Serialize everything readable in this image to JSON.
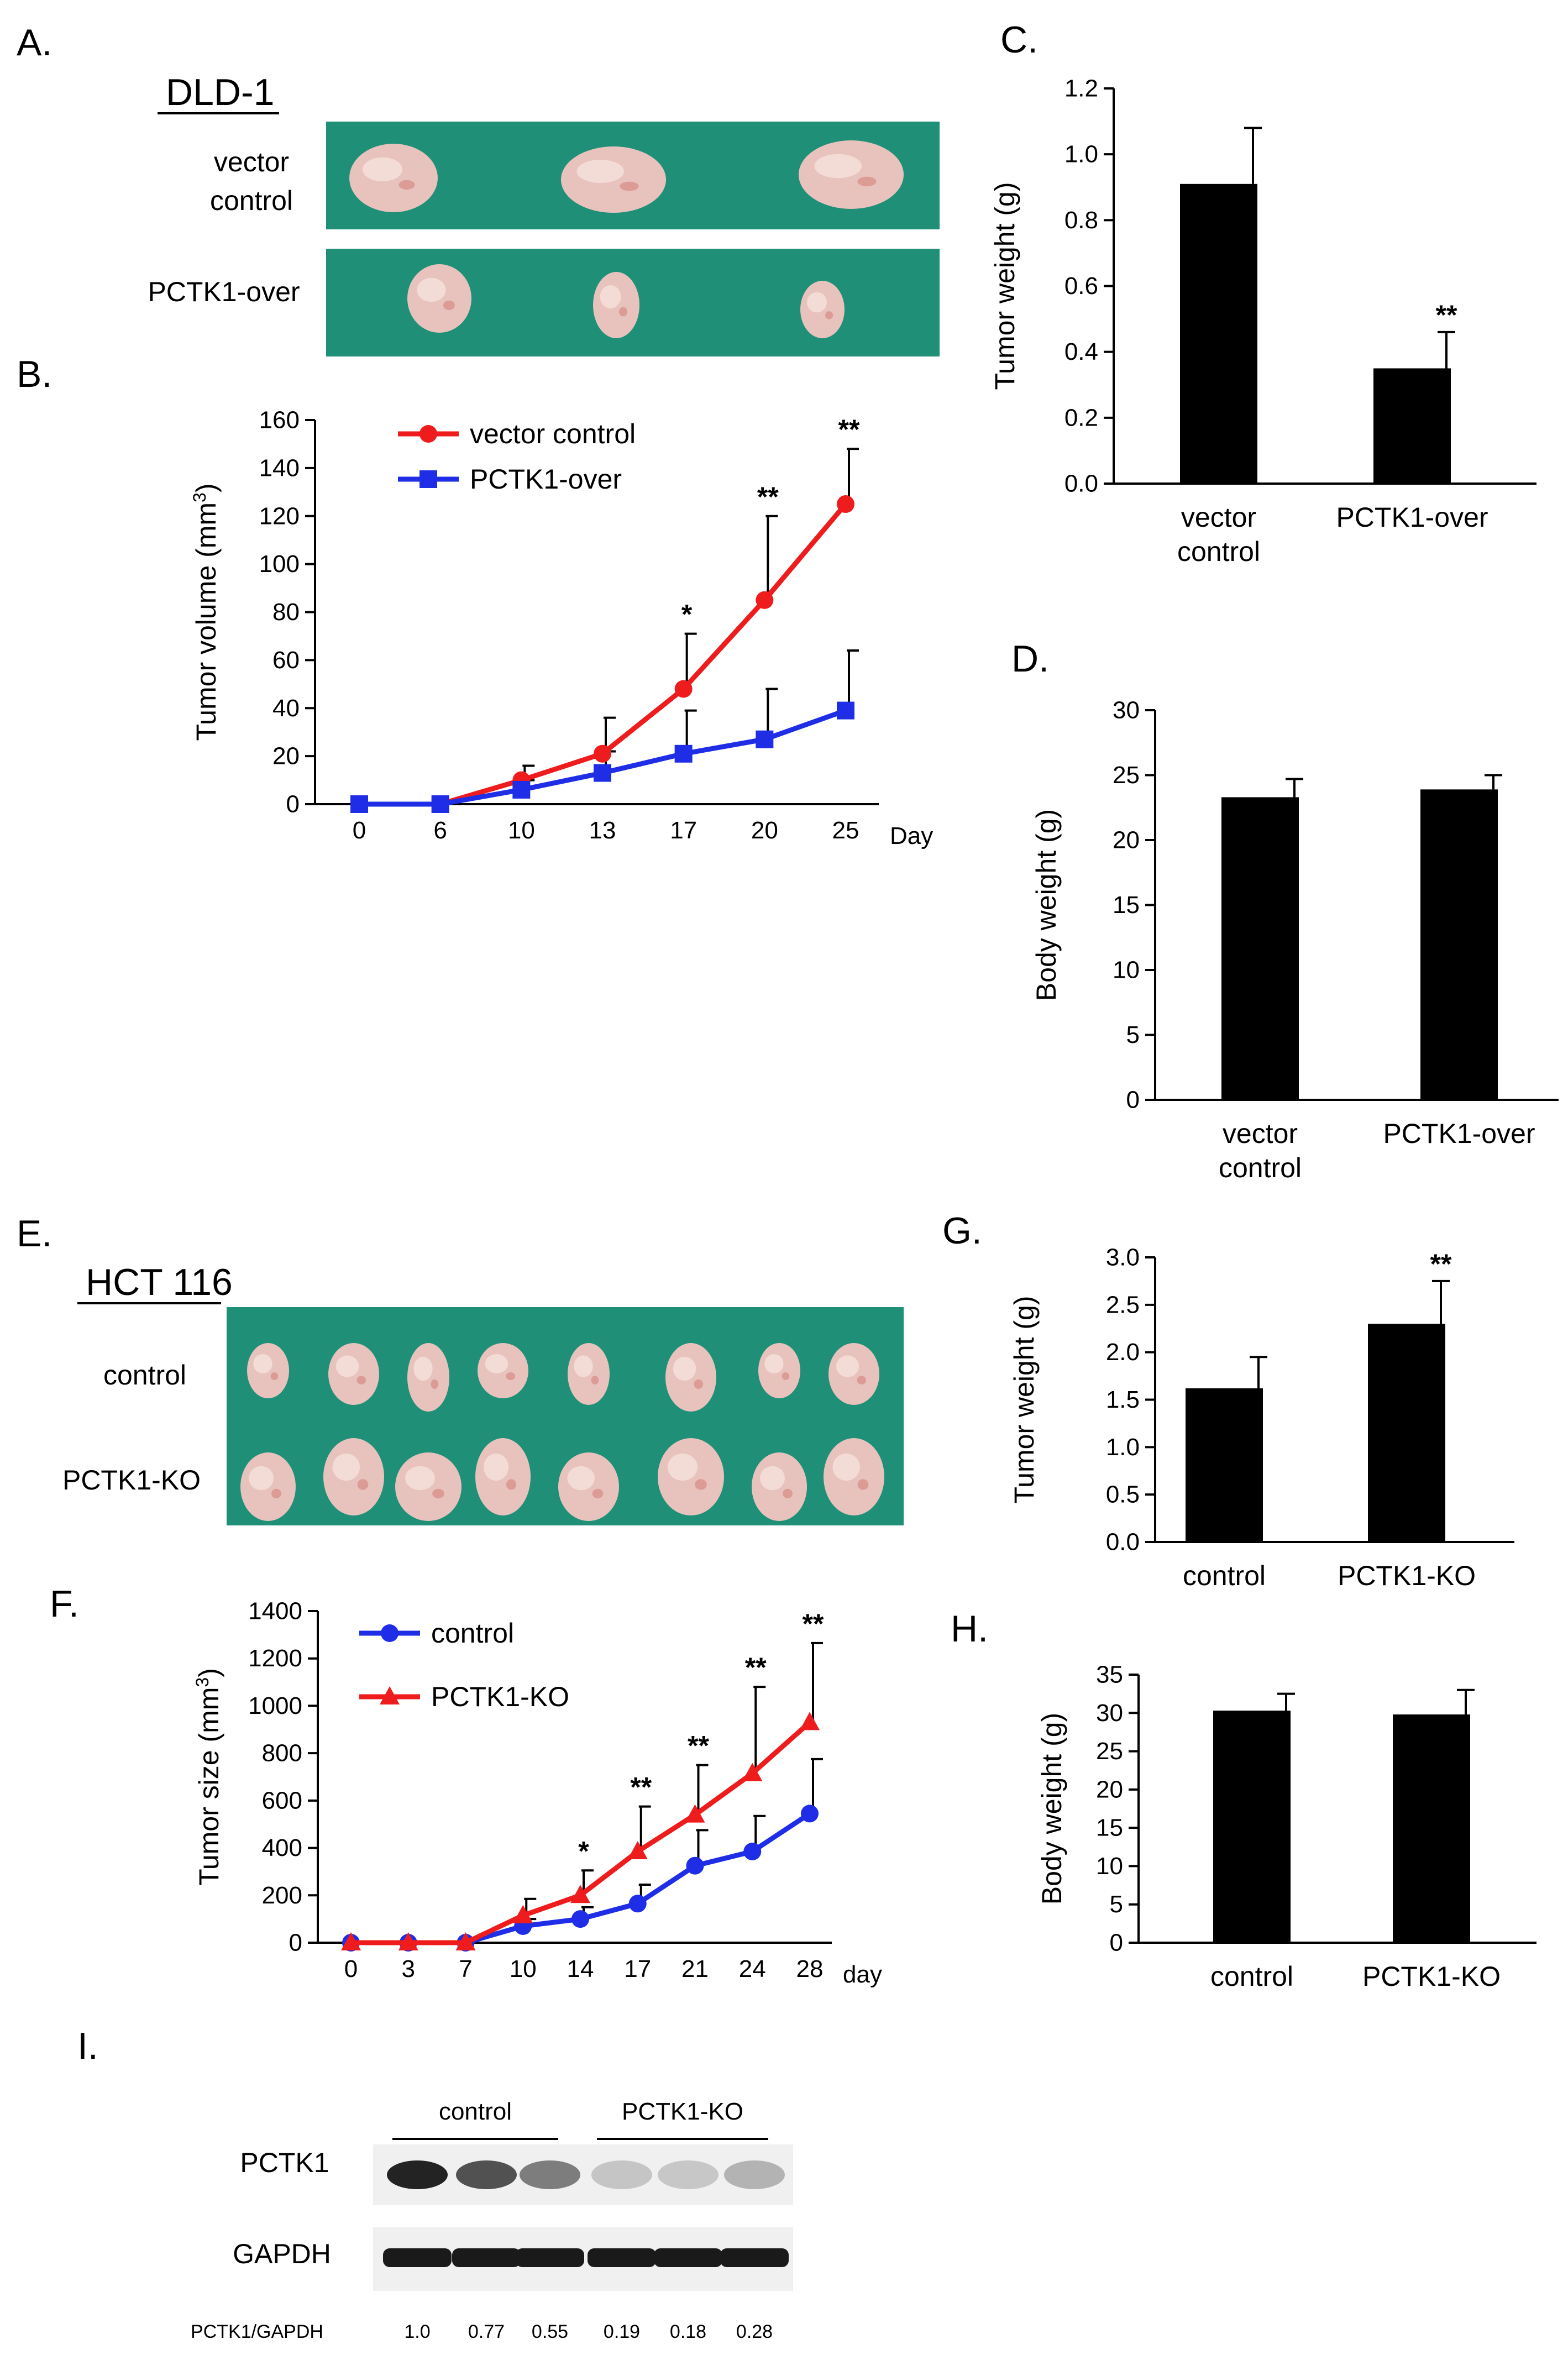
{
  "panels": {
    "A": {
      "label": "A.",
      "cell_line": "DLD-1",
      "rows": [
        "vector\ncontrol",
        "PCTK1-over"
      ],
      "photo_counts": [
        3,
        3
      ]
    },
    "E": {
      "label": "E.",
      "cell_line": "HCT 116",
      "rows": [
        "control",
        "PCTK1-KO"
      ],
      "photo_counts": [
        8,
        8
      ]
    },
    "I": {
      "label": "I.",
      "groups": [
        "control",
        "PCTK1-KO"
      ],
      "bands": [
        "PCTK1",
        "GAPDH"
      ],
      "ratio_label": "PCTK1/GAPDH",
      "ratios": [
        "1.0",
        "0.77",
        "0.55",
        "0.19",
        "0.18",
        "0.28"
      ],
      "pctk1_intensity": [
        1.0,
        0.77,
        0.55,
        0.19,
        0.18,
        0.28
      ]
    }
  },
  "colors": {
    "tissue_bg": "#1f8f78",
    "tumor": "#e8c3bd",
    "red": "#ee1c1c",
    "blue": "#1f2ee6",
    "bar": "#000000"
  },
  "chart_data": [
    {
      "id": "B",
      "panel_label": "B.",
      "type": "line",
      "x": [
        "0",
        "6",
        "10",
        "13",
        "17",
        "20",
        "25"
      ],
      "x_unit": "Day",
      "ylabel": "Tumor volume (mm³)",
      "ylim": [
        0,
        160
      ],
      "yticks": [
        "0",
        "20",
        "40",
        "60",
        "80",
        "100",
        "120",
        "140",
        "160"
      ],
      "legend": "top-left",
      "series": [
        {
          "name": "vector control",
          "color": "#ee1c1c",
          "marker": "circle",
          "values": [
            0,
            0,
            10,
            21,
            48,
            85,
            125
          ],
          "errors": [
            0,
            0,
            6,
            15,
            23,
            35,
            23
          ]
        },
        {
          "name": "PCTK1-over",
          "color": "#1f2ee6",
          "marker": "square",
          "values": [
            0,
            0,
            6,
            13,
            21,
            27,
            39
          ],
          "errors": [
            0,
            0,
            4,
            9,
            18,
            21,
            25
          ]
        }
      ],
      "annotations": [
        "",
        "",
        "",
        "",
        "*",
        "**",
        "**"
      ]
    },
    {
      "id": "C",
      "panel_label": "C.",
      "type": "bar",
      "categories": [
        "vector\ncontrol",
        "PCTK1-over"
      ],
      "values": [
        0.91,
        0.35
      ],
      "errors": [
        0.17,
        0.11
      ],
      "ylabel": "Tumor weight (g)",
      "ylim": [
        0,
        1.2
      ],
      "yticks": [
        "0.0",
        "0.2",
        "0.4",
        "0.6",
        "0.8",
        "1.0",
        "1.2"
      ],
      "annotations": [
        "",
        "**"
      ]
    },
    {
      "id": "D",
      "panel_label": "D.",
      "type": "bar",
      "categories": [
        "vector\ncontrol",
        "PCTK1-over"
      ],
      "values": [
        23.3,
        23.9
      ],
      "errors": [
        1.4,
        1.1
      ],
      "ylabel": "Body weight (g)",
      "ylim": [
        0,
        30
      ],
      "yticks": [
        "0",
        "5",
        "10",
        "15",
        "20",
        "25",
        "30"
      ],
      "annotations": [
        "",
        ""
      ]
    },
    {
      "id": "F",
      "panel_label": "F.",
      "type": "line",
      "x": [
        "0",
        "3",
        "7",
        "10",
        "14",
        "17",
        "21",
        "24",
        "28"
      ],
      "x_unit": "day",
      "ylabel": "Tumor size (mm³)",
      "ylim": [
        0,
        1400
      ],
      "yticks": [
        "0",
        "200",
        "400",
        "600",
        "800",
        "1000",
        "1200",
        "1400"
      ],
      "legend": "top-left",
      "series": [
        {
          "name": "control",
          "color": "#1f2ee6",
          "marker": "circle",
          "values": [
            0,
            0,
            0,
            70,
            100,
            165,
            325,
            385,
            545
          ],
          "errors": [
            0,
            0,
            0,
            30,
            50,
            80,
            150,
            150,
            230
          ]
        },
        {
          "name": "PCTK1-KO",
          "color": "#ee1c1c",
          "marker": "triangle",
          "values": [
            0,
            0,
            0,
            115,
            200,
            385,
            540,
            715,
            930
          ],
          "errors": [
            0,
            0,
            0,
            70,
            105,
            190,
            210,
            365,
            335
          ]
        }
      ],
      "annotations": [
        "",
        "",
        "",
        "",
        "*",
        "**",
        "**",
        "**",
        "**"
      ]
    },
    {
      "id": "G",
      "panel_label": "G.",
      "type": "bar",
      "categories": [
        "control",
        "PCTK1-KO"
      ],
      "values": [
        1.62,
        2.3
      ],
      "errors": [
        0.33,
        0.45
      ],
      "ylabel": "Tumor weight (g)",
      "ylim": [
        0,
        3.0
      ],
      "yticks": [
        "0.0",
        "0.5",
        "1.0",
        "1.5",
        "2.0",
        "2.5",
        "3.0"
      ],
      "annotations": [
        "",
        "**"
      ]
    },
    {
      "id": "H",
      "panel_label": "H.",
      "type": "bar",
      "categories": [
        "control",
        "PCTK1-KO"
      ],
      "values": [
        30.3,
        29.8
      ],
      "errors": [
        2.2,
        3.2
      ],
      "ylabel": "Body weight (g)",
      "ylim": [
        0,
        35
      ],
      "yticks": [
        "0",
        "5",
        "10",
        "15",
        "20",
        "25",
        "30",
        "35"
      ],
      "annotations": [
        "",
        ""
      ]
    }
  ]
}
